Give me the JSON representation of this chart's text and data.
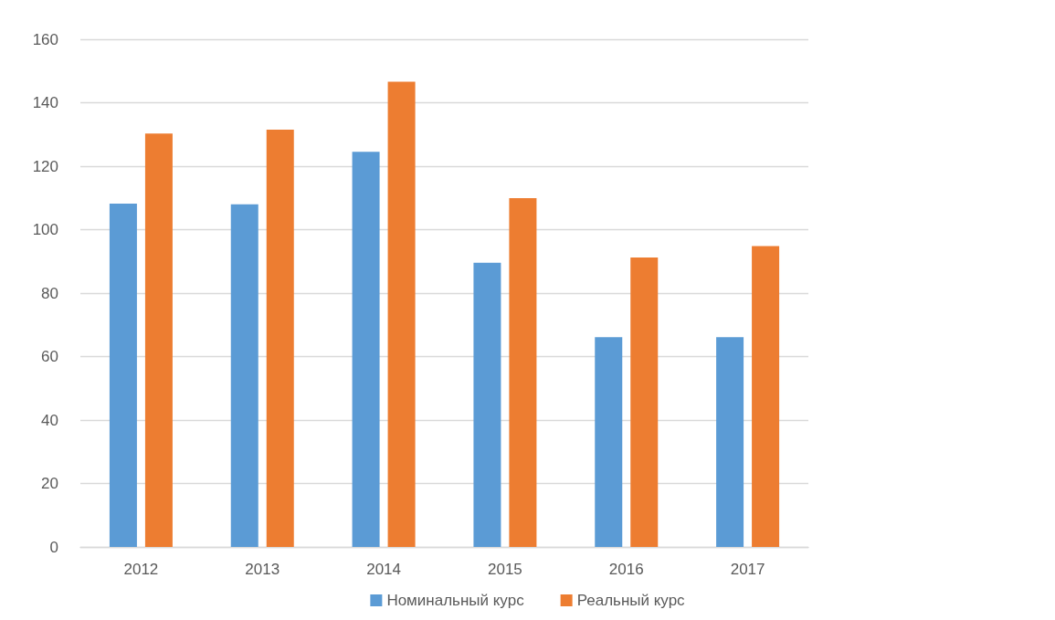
{
  "chart_data": {
    "type": "bar",
    "categories": [
      "2012",
      "2013",
      "2014",
      "2015",
      "2016",
      "2017"
    ],
    "series": [
      {
        "name": "Номинальный курс",
        "color": "#5b9bd5",
        "values": [
          108.2,
          108.0,
          124.5,
          89.6,
          66.1,
          66.1
        ]
      },
      {
        "name": "Реальный курс",
        "color": "#ed7d31",
        "values": [
          130.3,
          131.5,
          146.6,
          109.9,
          91.2,
          94.8
        ]
      }
    ],
    "ylim": [
      0,
      160
    ],
    "yticks": [
      0,
      20,
      40,
      60,
      80,
      100,
      120,
      140,
      160
    ],
    "grid": "y",
    "legend": "bottom"
  }
}
